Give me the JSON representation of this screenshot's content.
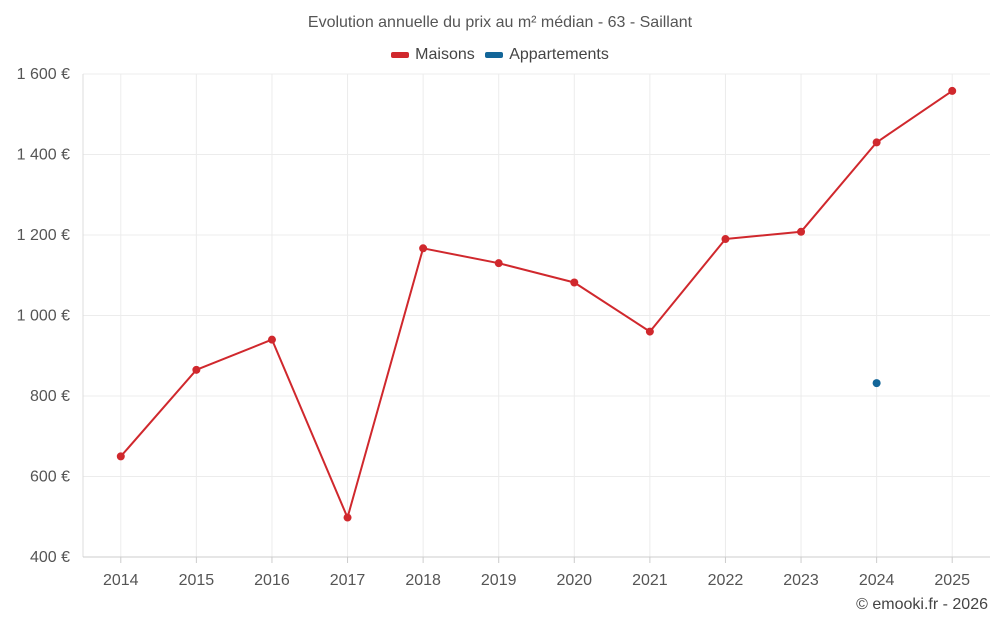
{
  "chart_data": {
    "type": "line",
    "title": "Evolution annuelle du prix au m² médian - 63 - Saillant",
    "xlabel": "",
    "ylabel": "",
    "x": [
      "2014",
      "2015",
      "2016",
      "2017",
      "2018",
      "2019",
      "2020",
      "2021",
      "2022",
      "2023",
      "2024",
      "2025"
    ],
    "ylim": [
      400,
      1600
    ],
    "yticks": [
      400,
      600,
      800,
      1000,
      1200,
      1400,
      1600
    ],
    "ytick_labels": [
      "400 €",
      "600 €",
      "800 €",
      "1 000 €",
      "1 200 €",
      "1 400 €",
      "1 600 €"
    ],
    "grid": true,
    "legend_position": "top-center",
    "series": [
      {
        "name": "Maisons",
        "color": "#d0282d",
        "values": [
          650,
          865,
          940,
          498,
          1167,
          1130,
          1082,
          960,
          1190,
          1208,
          1430,
          1558
        ]
      },
      {
        "name": "Appartements",
        "color": "#136699",
        "values": [
          null,
          null,
          null,
          null,
          null,
          null,
          null,
          null,
          null,
          null,
          832,
          null
        ]
      }
    ]
  },
  "footer": {
    "credit": "© emooki.fr - 2026"
  }
}
